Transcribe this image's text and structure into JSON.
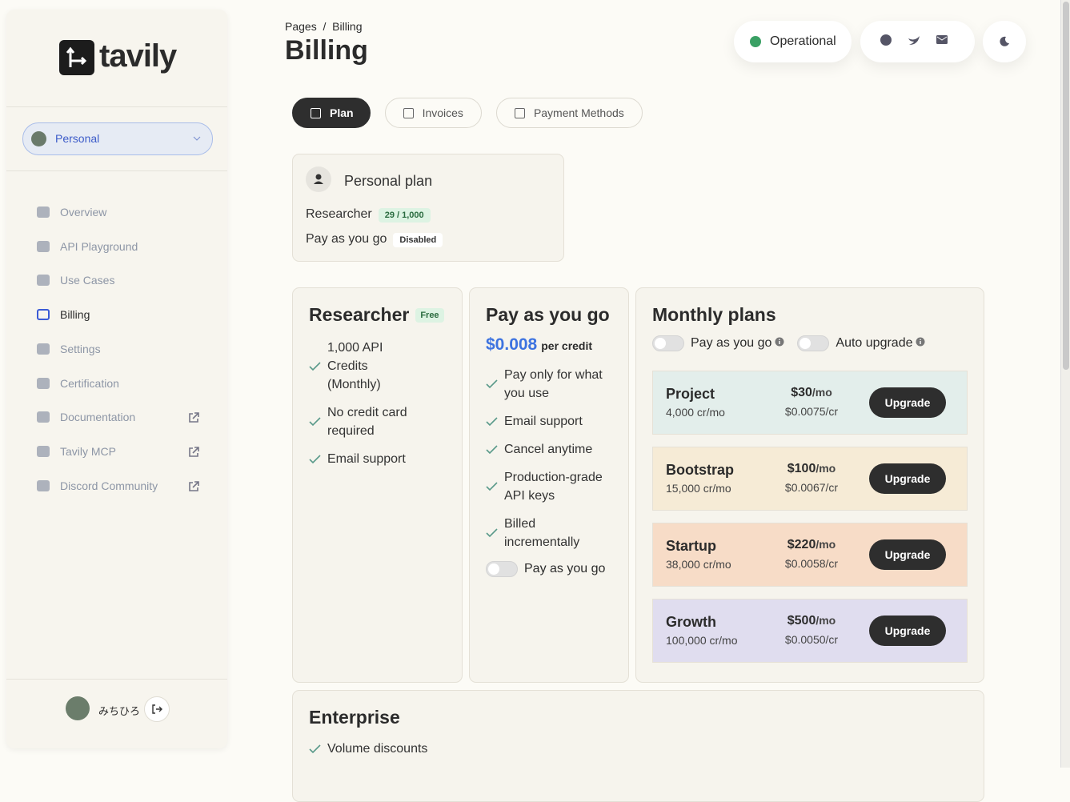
{
  "sidebar": {
    "logo": "tavily",
    "workspace": "Personal",
    "nav": [
      "Overview",
      "API Playground",
      "Use Cases",
      "Billing",
      "Settings",
      "Certification",
      "Documentation",
      "Tavily MCP",
      "Discord Community"
    ],
    "user": "みちひろ"
  },
  "header": {
    "breadcrumb": {
      "parent": "Pages",
      "separator": "/",
      "current": "Billing"
    },
    "title": "Billing",
    "status": "Operational"
  },
  "tabs": [
    "Plan",
    "Invoices",
    "Payment Methods"
  ],
  "current_plan": {
    "title": "Personal plan",
    "rows": [
      {
        "label": "Researcher",
        "badge": "29 / 1,000"
      },
      {
        "label": "Pay as you go",
        "badge": "Disabled"
      }
    ]
  },
  "researcher": {
    "name": "Researcher",
    "badge": "Free",
    "features": [
      "1,000 API Credits (Monthly)",
      "No credit card required",
      "Email support"
    ]
  },
  "pay_as_you_go": {
    "name": "Pay as you go",
    "price": "$0.008",
    "unit": "per credit",
    "features": [
      "Pay only for what you use",
      "Email support",
      "Cancel anytime",
      "Production-grade API keys",
      "Billed incrementally"
    ],
    "toggle": "Pay as you go"
  },
  "monthly": {
    "title": "Monthly plans",
    "toggles": [
      "Pay as you go",
      "Auto upgrade"
    ],
    "plans": [
      {
        "name": "Project",
        "credits": "4,000 cr/mo",
        "price": "$30",
        "period": "/mo",
        "rate": "$0.0075/cr",
        "button": "Upgrade",
        "color": "#e3eeeb"
      },
      {
        "name": "Bootstrap",
        "credits": "15,000 cr/mo",
        "price": "$100",
        "period": "/mo",
        "rate": "$0.0067/cr",
        "button": "Upgrade",
        "color": "#f6ebd6"
      },
      {
        "name": "Startup",
        "credits": "38,000 cr/mo",
        "price": "$220",
        "period": "/mo",
        "rate": "$0.0058/cr",
        "button": "Upgrade",
        "color": "#f7dcc7"
      },
      {
        "name": "Growth",
        "credits": "100,000 cr/mo",
        "price": "$500",
        "period": "/mo",
        "rate": "$0.0050/cr",
        "button": "Upgrade",
        "color": "#e0ddef"
      }
    ]
  },
  "enterprise": {
    "title": "Enterprise",
    "features": [
      "Volume discounts"
    ]
  }
}
